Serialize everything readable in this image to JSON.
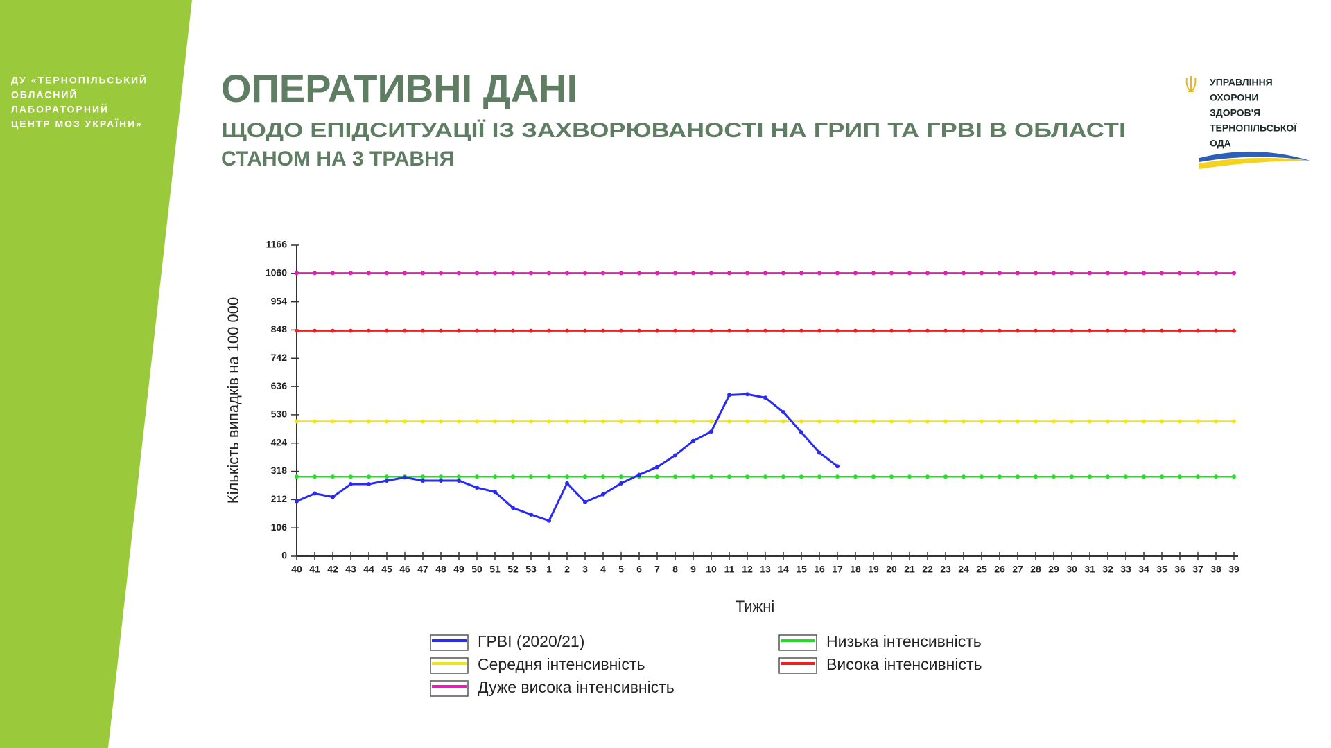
{
  "sidebar": {
    "lines": [
      "ДУ «ТЕРНОПІЛЬСЬКИЙ",
      "ОБЛАСНИЙ",
      "ЛАБОРАТОРНИЙ",
      "ЦЕНТР МОЗ УКРАЇНИ»"
    ]
  },
  "header": {
    "title": "ОПЕРАТИВНІ ДАНІ",
    "subtitle_lines": [
      "ЩОДО ЕПІДСИТУАЦІЇ ІЗ ЗАХВОРЮВАНОСТІ НА ГРИП ТА ГРВІ В ОБЛАСТІ",
      "СТАНОМ НА 3 ТРАВНЯ"
    ]
  },
  "logo": {
    "lines": [
      "УПРАВЛІННЯ",
      "ОХОРОНИ",
      "ЗДОРОВ'Я",
      "ТЕРНОПІЛЬСЬКОЇ",
      "ОДА"
    ]
  },
  "chart_data": {
    "type": "line",
    "x_label": "Тижні",
    "y_label": "Кількість випадків на 100 000",
    "categories": [
      "40",
      "41",
      "42",
      "43",
      "44",
      "45",
      "46",
      "47",
      "48",
      "49",
      "50",
      "51",
      "52",
      "53",
      "1",
      "2",
      "3",
      "4",
      "5",
      "6",
      "7",
      "8",
      "9",
      "10",
      "11",
      "12",
      "13",
      "14",
      "15",
      "16",
      "17",
      "18",
      "19",
      "20",
      "21",
      "22",
      "23",
      "24",
      "25",
      "26",
      "27",
      "28",
      "29",
      "30",
      "31",
      "32",
      "33",
      "34",
      "35",
      "36",
      "37",
      "38",
      "39"
    ],
    "ylim": [
      0,
      1166
    ],
    "yticks": [
      0,
      106,
      212,
      318,
      424,
      530,
      636,
      742,
      848,
      954,
      1060,
      1166
    ],
    "grid": false,
    "series": [
      {
        "name": "ГРВІ (2020/21)",
        "color": "#2a2af2",
        "values": [
          206,
          235,
          222,
          270,
          270,
          283,
          295,
          283,
          283,
          283,
          257,
          241,
          181,
          156,
          133,
          273,
          203,
          232,
          273,
          305,
          334,
          378,
          432,
          467,
          604,
          607,
          594,
          540,
          464,
          388,
          337,
          null,
          null,
          null,
          null,
          null,
          null,
          null,
          null,
          null,
          null,
          null,
          null,
          null,
          null,
          null,
          null,
          null,
          null,
          null,
          null,
          null,
          null
        ]
      },
      {
        "name": "Середня інтенсивність",
        "color": "#f2e21e",
        "values": [
          505,
          505,
          505,
          505,
          505,
          505,
          505,
          505,
          505,
          505,
          505,
          505,
          505,
          505,
          505,
          505,
          505,
          505,
          505,
          505,
          505,
          505,
          505,
          505,
          505,
          505,
          505,
          505,
          505,
          505,
          505,
          505,
          505,
          505,
          505,
          505,
          505,
          505,
          505,
          505,
          505,
          505,
          505,
          505,
          505,
          505,
          505,
          505,
          505,
          505,
          505,
          505,
          505
        ]
      },
      {
        "name": "Дуже висока інтенсивність",
        "color": "#e01fb4",
        "values": [
          1061,
          1061,
          1061,
          1061,
          1061,
          1061,
          1061,
          1061,
          1061,
          1061,
          1061,
          1061,
          1061,
          1061,
          1061,
          1061,
          1061,
          1061,
          1061,
          1061,
          1061,
          1061,
          1061,
          1061,
          1061,
          1061,
          1061,
          1061,
          1061,
          1061,
          1061,
          1061,
          1061,
          1061,
          1061,
          1061,
          1061,
          1061,
          1061,
          1061,
          1061,
          1061,
          1061,
          1061,
          1061,
          1061,
          1061,
          1061,
          1061,
          1061,
          1061,
          1061,
          1061
        ]
      },
      {
        "name": "Низька інтенсивність",
        "color": "#24e024",
        "values": [
          298,
          298,
          298,
          298,
          298,
          298,
          298,
          298,
          298,
          298,
          298,
          298,
          298,
          298,
          298,
          298,
          298,
          298,
          298,
          298,
          298,
          298,
          298,
          298,
          298,
          298,
          298,
          298,
          298,
          298,
          298,
          298,
          298,
          298,
          298,
          298,
          298,
          298,
          298,
          298,
          298,
          298,
          298,
          298,
          298,
          298,
          298,
          298,
          298,
          298,
          298,
          298,
          298
        ]
      },
      {
        "name": "Висока інтенсивність",
        "color": "#f02020",
        "values": [
          845,
          845,
          845,
          845,
          845,
          845,
          845,
          845,
          845,
          845,
          845,
          845,
          845,
          845,
          845,
          845,
          845,
          845,
          845,
          845,
          845,
          845,
          845,
          845,
          845,
          845,
          845,
          845,
          845,
          845,
          845,
          845,
          845,
          845,
          845,
          845,
          845,
          845,
          845,
          845,
          845,
          845,
          845,
          845,
          845,
          845,
          845,
          845,
          845,
          845,
          845,
          845,
          845
        ]
      }
    ]
  }
}
